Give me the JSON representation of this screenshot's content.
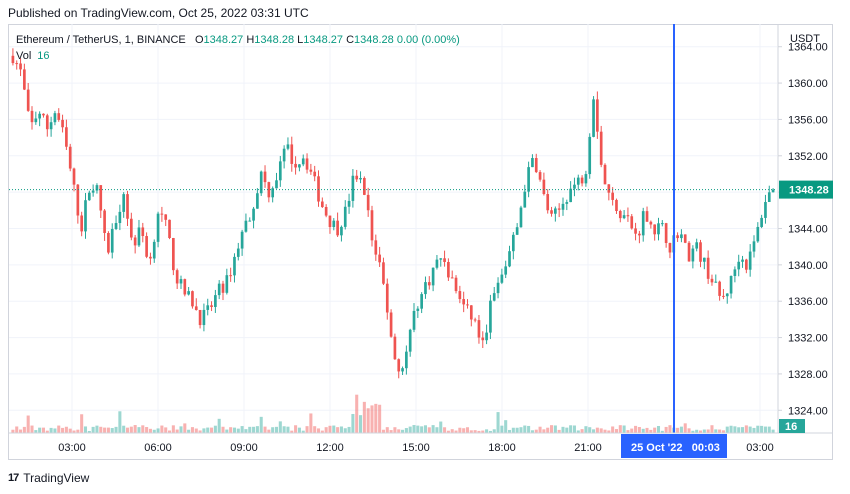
{
  "header": {
    "published": "Published on TradingView.com, Oct 25, 2022 03:31 UTC"
  },
  "legend": {
    "symbol": "Ethereum / TetherUS, 1, BINANCE",
    "o_label": "O",
    "o": "1348.27",
    "h_label": "H",
    "h": "1348.28",
    "l_label": "L",
    "l": "1348.27",
    "c_label": "C",
    "c": "1348.28",
    "change": "0.00 (0.00%)",
    "vol_label": "Vol",
    "vol": "16"
  },
  "footer": {
    "brand": "TradingView",
    "logo_text": "17"
  },
  "chart_data": {
    "type": "candlestick",
    "currency": "USDT",
    "y_ticks": [
      "1364.00",
      "1360.00",
      "1356.00",
      "1352.00",
      "1348.00",
      "1344.00",
      "1340.00",
      "1336.00",
      "1332.00",
      "1328.00",
      "1324.00"
    ],
    "ylim": [
      1321.5,
      1366.5
    ],
    "x_ticks": [
      "03:00",
      "06:00",
      "09:00",
      "12:00",
      "15:00",
      "18:00",
      "21:00",
      "03:00"
    ],
    "crosshair_label": "25 Oct '22   00:03",
    "last_price_label": "1348.28",
    "last_volume_label": "16",
    "colors": {
      "up": "#26a69a",
      "down": "#ef5350",
      "crosshair": "#2962ff",
      "last_price": "#089981"
    },
    "price_path": [
      1363,
      1361,
      1355,
      1357,
      1355,
      1357,
      1354,
      1349,
      1344,
      1349,
      1348,
      1341,
      1345,
      1348,
      1342,
      1344,
      1340,
      1346,
      1344,
      1339,
      1337,
      1336,
      1334,
      1335,
      1337,
      1338,
      1341,
      1344,
      1346,
      1350,
      1348,
      1350,
      1353,
      1351,
      1352,
      1350,
      1347,
      1345,
      1344,
      1346,
      1350,
      1349,
      1343,
      1340,
      1334,
      1328,
      1330,
      1335,
      1337,
      1339,
      1341,
      1339,
      1337,
      1335,
      1334,
      1331,
      1336,
      1338,
      1341,
      1344,
      1349,
      1352,
      1348,
      1345,
      1346,
      1348,
      1349,
      1350,
      1359,
      1350,
      1347,
      1346,
      1345,
      1343,
      1346,
      1344,
      1344,
      1342,
      1344,
      1341,
      1342,
      1340,
      1338,
      1336,
      1338,
      1341,
      1340,
      1343,
      1347,
      1348.28
    ]
  }
}
